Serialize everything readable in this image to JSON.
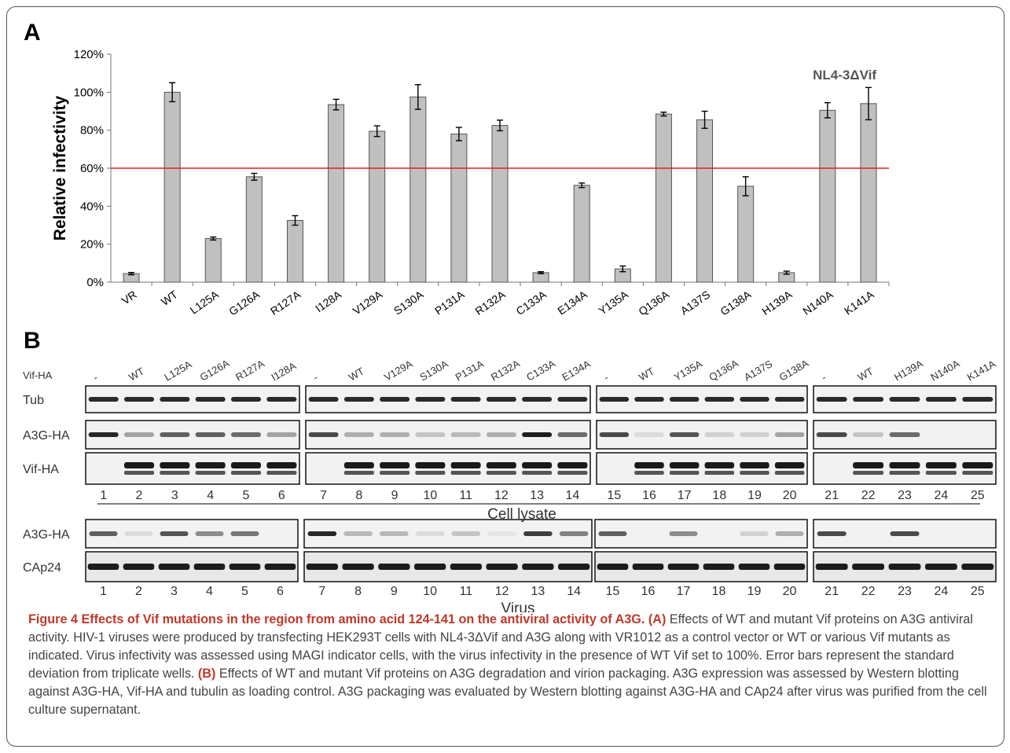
{
  "panel_a_letter": "A",
  "panel_b_letter": "B",
  "chart_data": {
    "type": "bar",
    "title": "",
    "ylabel": "Relative infectivity",
    "xlabel": "",
    "annotation": "NL4-3ΔVif",
    "ylim": [
      0,
      120
    ],
    "yticks": [
      "0%",
      "20%",
      "40%",
      "60%",
      "80%",
      "100%",
      "120%"
    ],
    "threshold": 60,
    "threshold_color": "#e0201a",
    "bar_color": "#c0c0c0",
    "categories": [
      "VR",
      "WT",
      "L125A",
      "G126A",
      "R127A",
      "I128A",
      "V129A",
      "S130A",
      "P131A",
      "R132A",
      "C133A",
      "E134A",
      "Y135A",
      "Q136A",
      "A137S",
      "G138A",
      "H139A",
      "N140A",
      "K141A"
    ],
    "values": [
      4.5,
      100,
      23,
      55.5,
      32.5,
      93.5,
      79.5,
      97.5,
      78,
      82.5,
      5,
      51,
      7,
      88.5,
      85.5,
      50.5,
      5,
      90.5,
      94
    ],
    "errors": [
      0.6,
      5,
      0.8,
      1.8,
      2.5,
      2.8,
      2.8,
      6.5,
      3.5,
      2.8,
      0.5,
      1.2,
      1.5,
      1,
      4.5,
      5,
      0.8,
      4,
      8.5
    ],
    "grid": false
  },
  "blot": {
    "vif_ha_label": "Vif-HA",
    "row_labels_lysate": [
      "Tub",
      "A3G-HA",
      "Vif-HA"
    ],
    "row_labels_virus": [
      "A3G-HA",
      "CAp24"
    ],
    "lane_headers": [
      [
        "-",
        "WT",
        "L125A",
        "G126A",
        "R127A",
        "I128A"
      ],
      [
        "-",
        "WT",
        "V129A",
        "S130A",
        "P131A",
        "R132A",
        "C133A",
        "E134A"
      ],
      [
        "-",
        "WT",
        "Y135A",
        "Q136A",
        "A137S",
        "G138A"
      ],
      [
        "-",
        "WT",
        "H139A",
        "N140A",
        "K141A"
      ]
    ],
    "lane_numbers": [
      [
        "1",
        "2",
        "3",
        "4",
        "5",
        "6"
      ],
      [
        "7",
        "8",
        "9",
        "10",
        "11",
        "12",
        "13",
        "14"
      ],
      [
        "15",
        "16",
        "17",
        "18",
        "19",
        "20"
      ],
      [
        "21",
        "22",
        "23",
        "24",
        "25"
      ]
    ],
    "cell_lysate_label": "Cell lysate",
    "virus_label": "Virus",
    "a3g_lysate_intensity": [
      [
        0.9,
        0.35,
        0.65,
        0.65,
        0.6,
        0.35
      ],
      [
        0.75,
        0.3,
        0.3,
        0.2,
        0.25,
        0.3,
        0.95,
        0.6
      ],
      [
        0.75,
        0.1,
        0.7,
        0.15,
        0.15,
        0.35
      ],
      [
        0.75,
        0.2,
        0.6,
        0.0,
        0.0
      ]
    ],
    "a3g_virus_intensity": [
      [
        0.65,
        0.1,
        0.7,
        0.45,
        0.55,
        0.0
      ],
      [
        0.9,
        0.25,
        0.25,
        0.1,
        0.2,
        0.05,
        0.8,
        0.5
      ],
      [
        0.65,
        0.0,
        0.45,
        0.0,
        0.15,
        0.3
      ],
      [
        0.75,
        0.0,
        0.75,
        0.0,
        0.0
      ]
    ]
  },
  "caption": {
    "title": "Figure 4 Effects of Vif mutations in the region from amino acid 124-141 on the antiviral activity of A3G.",
    "a_label": "(A)",
    "a_text": "Effects of WT and mutant Vif proteins on A3G antiviral activity. HIV-1 viruses were produced by transfecting HEK293T cells with NL4-3ΔVif and A3G along with VR1012 as a control vector or WT or various Vif mutants as indicated. Virus infectivity was assessed using MAGI indicator cells, with the virus infectivity in the presence of WT Vif set to 100%. Error bars represent the standard deviation from triplicate wells.",
    "b_label": "(B)",
    "b_text": "Effects of WT and mutant Vif proteins on A3G degradation and virion packaging. A3G expression was assessed by Western blotting against A3G-HA, Vif-HA and tubulin as loading control. A3G packaging was evaluated by Western blotting against A3G-HA and CAp24 after virus was purified from the cell culture supernatant."
  }
}
